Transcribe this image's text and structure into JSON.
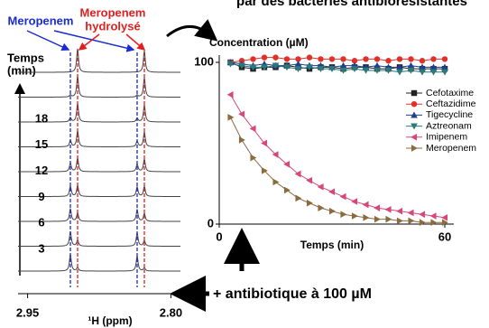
{
  "caption": "par des bactéries antibiorésistantes",
  "legend_intact": "Meropenem",
  "legend_hydrolysed": [
    "Meropenem",
    "hydrolysé"
  ],
  "addition_note": "+ antibiotique à 100 µM",
  "chart_data": [
    {
      "type": "spectra",
      "y_label": [
        "Temps",
        "(min)"
      ],
      "x_label": "¹H (ppm)",
      "categories": [
        3,
        6,
        9,
        12,
        15,
        18
      ],
      "xlim": [
        2.96,
        2.79
      ],
      "xticks": [
        2.95,
        {
          "value": 2.8,
          "label": "2.80"
        }
      ]
    },
    {
      "type": "line",
      "y_label": "Concentration (µM)",
      "x_label": "Temps (min)",
      "x": [
        3,
        6,
        9,
        12,
        15,
        18,
        21,
        24,
        27,
        30,
        33,
        36,
        39,
        42,
        45,
        48,
        51,
        54,
        57,
        60
      ],
      "xlim": [
        0,
        60
      ],
      "xticks": [
        0,
        60
      ],
      "ylim": [
        0,
        100
      ],
      "yticks": [
        0,
        100
      ],
      "series": [
        {
          "name": "Cefotaxime",
          "color": "#222222",
          "marker": "square",
          "values": [
            100,
            97,
            96,
            97,
            97,
            98,
            97,
            96,
            97,
            97,
            96,
            97,
            97,
            96,
            96,
            97,
            96,
            96,
            96,
            96
          ]
        },
        {
          "name": "Ceftazidime",
          "color": "#e0302a",
          "marker": "circle",
          "values": [
            100,
            101,
            102,
            103,
            103,
            102,
            102,
            103,
            102,
            102,
            102,
            101,
            102,
            102,
            101,
            102,
            102,
            101,
            102,
            102
          ]
        },
        {
          "name": "Tigecycline",
          "color": "#1f3f8f",
          "marker": "triangle",
          "values": [
            100,
            99,
            98,
            99,
            98,
            98,
            99,
            98,
            98,
            97,
            98,
            98,
            97,
            98,
            97,
            97,
            98,
            97,
            97,
            97
          ]
        },
        {
          "name": "Aztreonam",
          "color": "#2a7a7a",
          "marker": "triangle-down",
          "values": [
            99,
            98,
            97,
            97,
            98,
            97,
            96,
            97,
            96,
            96,
            95,
            96,
            95,
            95,
            95,
            94,
            95,
            94,
            94,
            94
          ]
        },
        {
          "name": "Imipenem",
          "color": "#d6487a",
          "marker": "triangle-left",
          "values": [
            80,
            68,
            59,
            50,
            43,
            37,
            31,
            27,
            23,
            20,
            17,
            14,
            12,
            10,
            9,
            8,
            7,
            6,
            5,
            4
          ]
        },
        {
          "name": "Meropenem",
          "color": "#8b6a3e",
          "marker": "triangle-right",
          "values": [
            66,
            52,
            41,
            33,
            26,
            21,
            16,
            13,
            10,
            8,
            6,
            5,
            4,
            3,
            3,
            2,
            2,
            1,
            1,
            1
          ]
        }
      ]
    }
  ]
}
